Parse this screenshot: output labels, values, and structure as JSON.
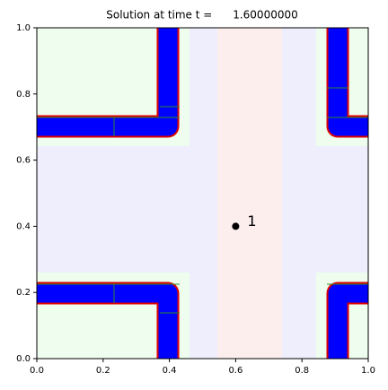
{
  "chart_data": {
    "type": "scatter",
    "title": "Solution at time t =      1.60000000",
    "x": [
      0.6
    ],
    "y": [
      0.4
    ],
    "point_labels": [
      "1"
    ],
    "color": "#000000",
    "xlim": [
      0,
      1
    ],
    "ylim": [
      0,
      1
    ],
    "xticks": [
      {
        "value": 0,
        "label": "0.0"
      },
      0.2,
      0.4,
      0.6,
      0.8,
      {
        "value": 1,
        "label": "1.0"
      }
    ],
    "yticks": [
      {
        "value": 0,
        "label": "0.0"
      },
      0.2,
      0.4,
      0.6,
      0.8,
      {
        "value": 1,
        "label": "1.0"
      }
    ]
  }
}
